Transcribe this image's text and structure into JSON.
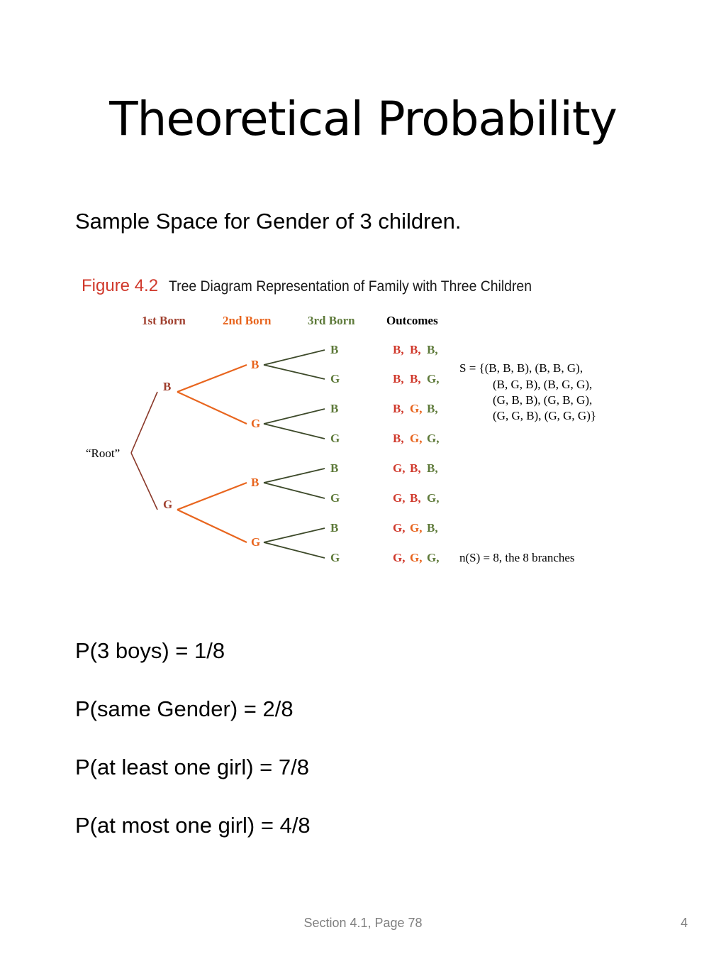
{
  "slide": {
    "title": "Theoretical Probability",
    "subtitle": "Sample Space for Gender of 3 children.",
    "probabilities": [
      "P(3 boys) = 1/8",
      "P(same Gender) = 2/8",
      "P(at least one girl) = 7/8",
      "P(at most one girl) = 4/8"
    ],
    "footer": "Section 4.1, Page 78",
    "page_number": "4"
  },
  "figure": {
    "label": "Figure 4.2",
    "caption": "Tree Diagram Representation of Family with Three Children",
    "headers": {
      "first": "1st Born",
      "second": "2nd Born",
      "third": "3rd Born",
      "outcomes": "Outcomes"
    },
    "root_label": "“Root”",
    "level1": [
      "B",
      "G"
    ],
    "level2": [
      "B",
      "G",
      "B",
      "G"
    ],
    "level3": [
      "B",
      "G",
      "B",
      "G",
      "B",
      "G",
      "B",
      "G"
    ],
    "outcomes": [
      [
        "B,",
        "B,",
        "B,"
      ],
      [
        "B,",
        "B,",
        "G,"
      ],
      [
        "B,",
        "G,",
        "B,"
      ],
      [
        "B,",
        "G,",
        "G,"
      ],
      [
        "G,",
        "B,",
        "B,"
      ],
      [
        "G,",
        "B,",
        "G,"
      ],
      [
        "G,",
        "G,",
        "B,"
      ],
      [
        "G,",
        "G,",
        "G,"
      ]
    ],
    "sample_space": [
      "S = {(B, B, B), (B, B, G),",
      "(B, G, B), (B, G, G),",
      "(G, B, B), (G, B, G),",
      "(G, G, B), (G, G, G)}"
    ],
    "count": "n(S) =  8, the 8 branches",
    "colors": {
      "first": "#a0402f",
      "second": "#e8651e",
      "third": "#5e7a3a",
      "label_red": "#d0392c",
      "line1": "#8b3a2b",
      "line2": "#e8651e",
      "line3": "#3d4a2a"
    }
  }
}
